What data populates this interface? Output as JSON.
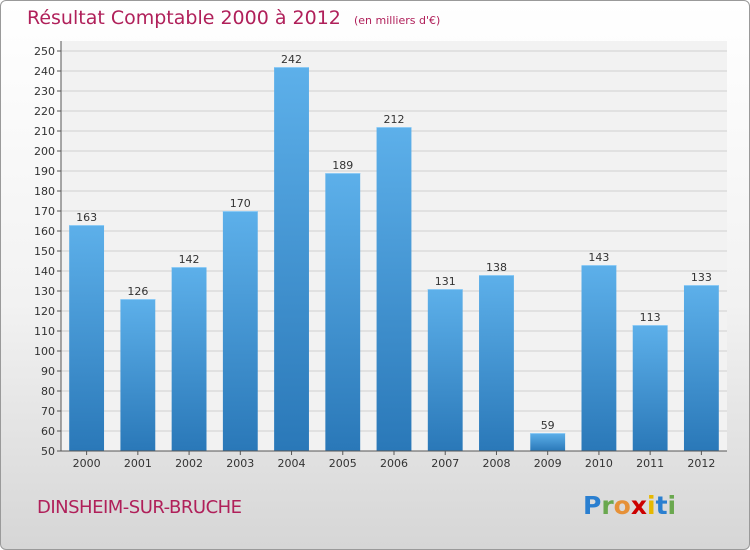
{
  "header": {
    "title": "Résultat Comptable 2000 à 2012",
    "subtitle": "(en milliers d'€)"
  },
  "footer": {
    "town": "DINSHEIM-SUR-BRUCHE",
    "brand_letters": [
      "P",
      "r",
      "o",
      "x",
      "i",
      "t",
      "i"
    ],
    "brand_colors": [
      "#2a7fd0",
      "#6aa84f",
      "#e69138",
      "#cc0000",
      "#e6b800",
      "#2a7fd0",
      "#6aa84f"
    ]
  },
  "colors": {
    "bar_light": "#5db0ea",
    "bar_dark": "#2a78b8",
    "title": "#b0205a"
  },
  "chart_data": {
    "type": "bar",
    "title": "Résultat Comptable 2000 à 2012",
    "subtitle": "(en milliers d'€)",
    "xlabel": "",
    "ylabel": "",
    "categories": [
      "2000",
      "2001",
      "2002",
      "2003",
      "2004",
      "2005",
      "2006",
      "2007",
      "2008",
      "2009",
      "2010",
      "2011",
      "2012"
    ],
    "values": [
      163,
      126,
      142,
      170,
      242,
      189,
      212,
      131,
      138,
      59,
      143,
      113,
      133
    ],
    "ylim": [
      50,
      250
    ],
    "ytick_step": 10,
    "grid": true
  }
}
